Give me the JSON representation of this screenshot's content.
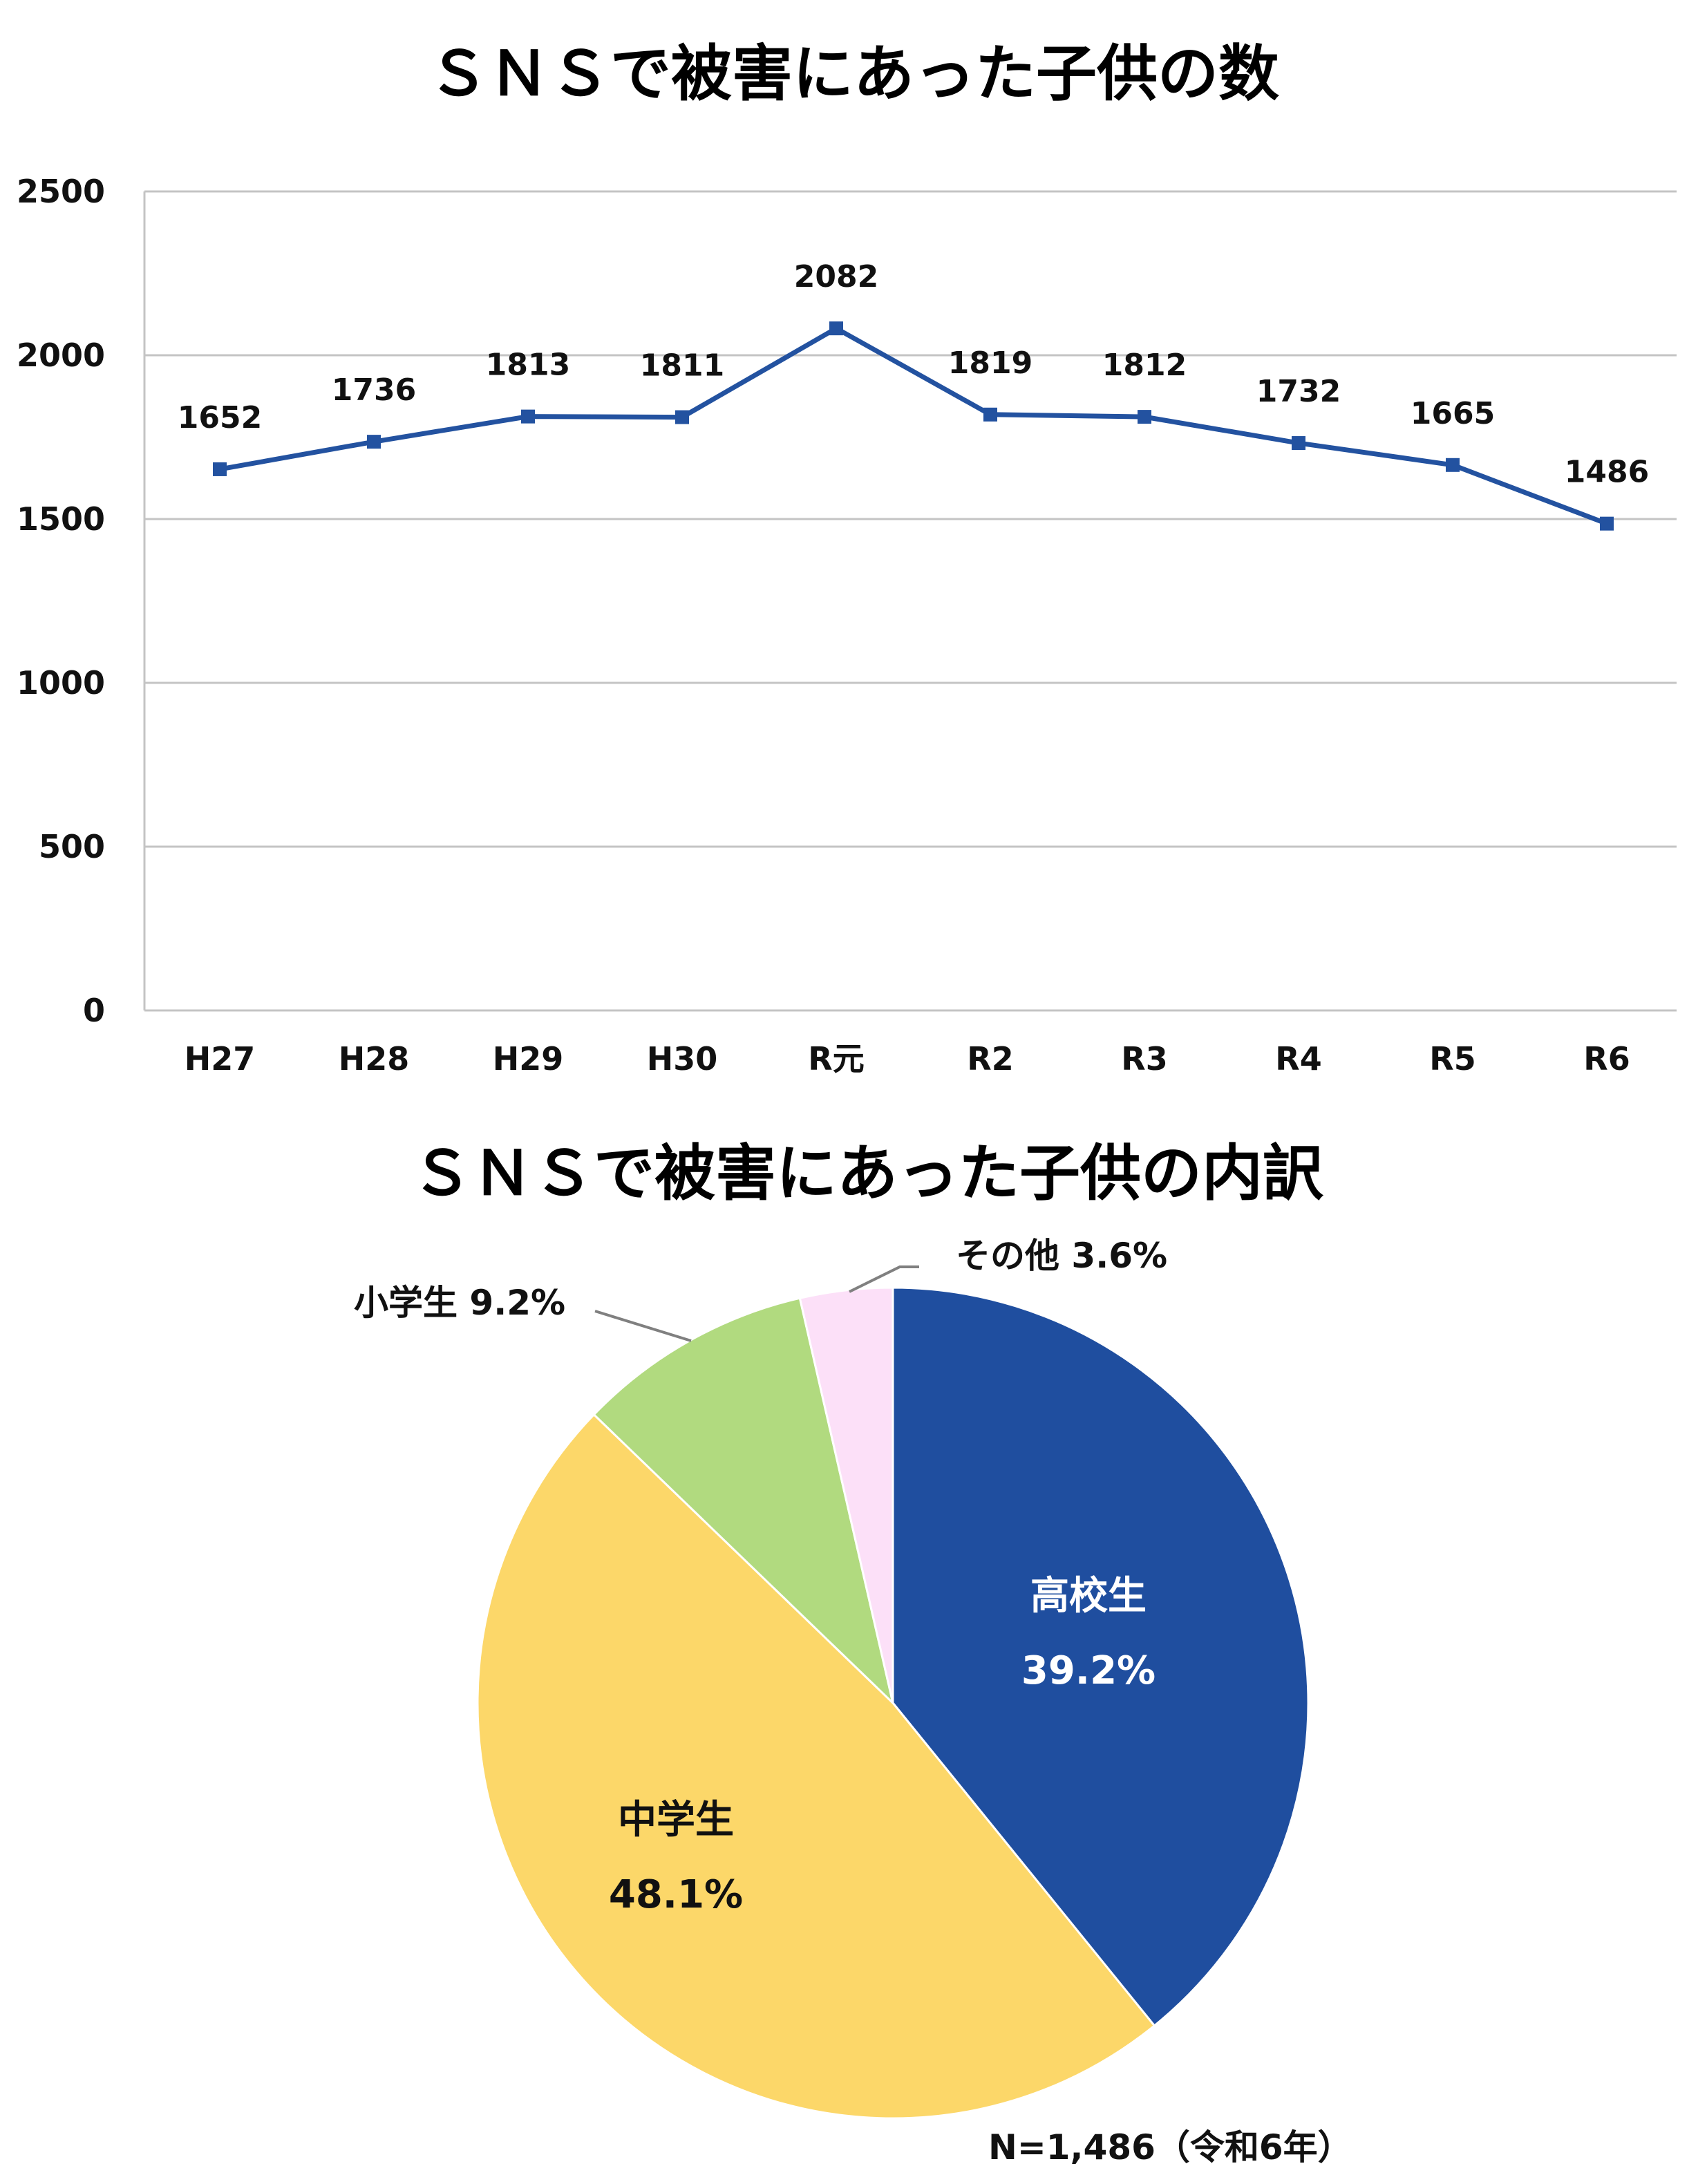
{
  "chart_data": [
    {
      "type": "line",
      "title": "ＳＮＳで被害にあった子供の数",
      "categories": [
        "H27",
        "H28",
        "H29",
        "H30",
        "R元",
        "R2",
        "R3",
        "R4",
        "R5",
        "R6"
      ],
      "values": [
        1652,
        1736,
        1813,
        1811,
        2082,
        1819,
        1812,
        1732,
        1665,
        1486
      ],
      "data_labels": [
        "1652",
        "1736",
        "1813",
        "1811",
        "2082",
        "1819",
        "1812",
        "1732",
        "1665",
        "1486"
      ],
      "ylim": [
        0,
        2500
      ],
      "yticks": [
        "0",
        "500",
        "1000",
        "1500",
        "2000",
        "2500"
      ],
      "ytick_values": [
        0,
        500,
        1000,
        1500,
        2000,
        2500
      ],
      "grid": true,
      "color": "#2352A0"
    },
    {
      "type": "pie",
      "title": "ＳＮＳで被害にあった子供の内訳",
      "slices": [
        {
          "label": "高校生",
          "value": 39.2,
          "value_label": "39.2%",
          "color": "#1F4E9F",
          "text_color": "#FFFFFF"
        },
        {
          "label": "中学生",
          "value": 48.1,
          "value_label": "48.1%",
          "color": "#FCD769",
          "text_color": "#111111"
        },
        {
          "label": "小学生",
          "value": 9.2,
          "value_label": "9.2%",
          "color": "#B1DA7F",
          "text_color": "#111111"
        },
        {
          "label": "その他",
          "value": 3.6,
          "value_label": "3.6%",
          "color": "#FCE0F8",
          "text_color": "#111111"
        }
      ],
      "note": "N=1,486（令和6年）"
    }
  ]
}
